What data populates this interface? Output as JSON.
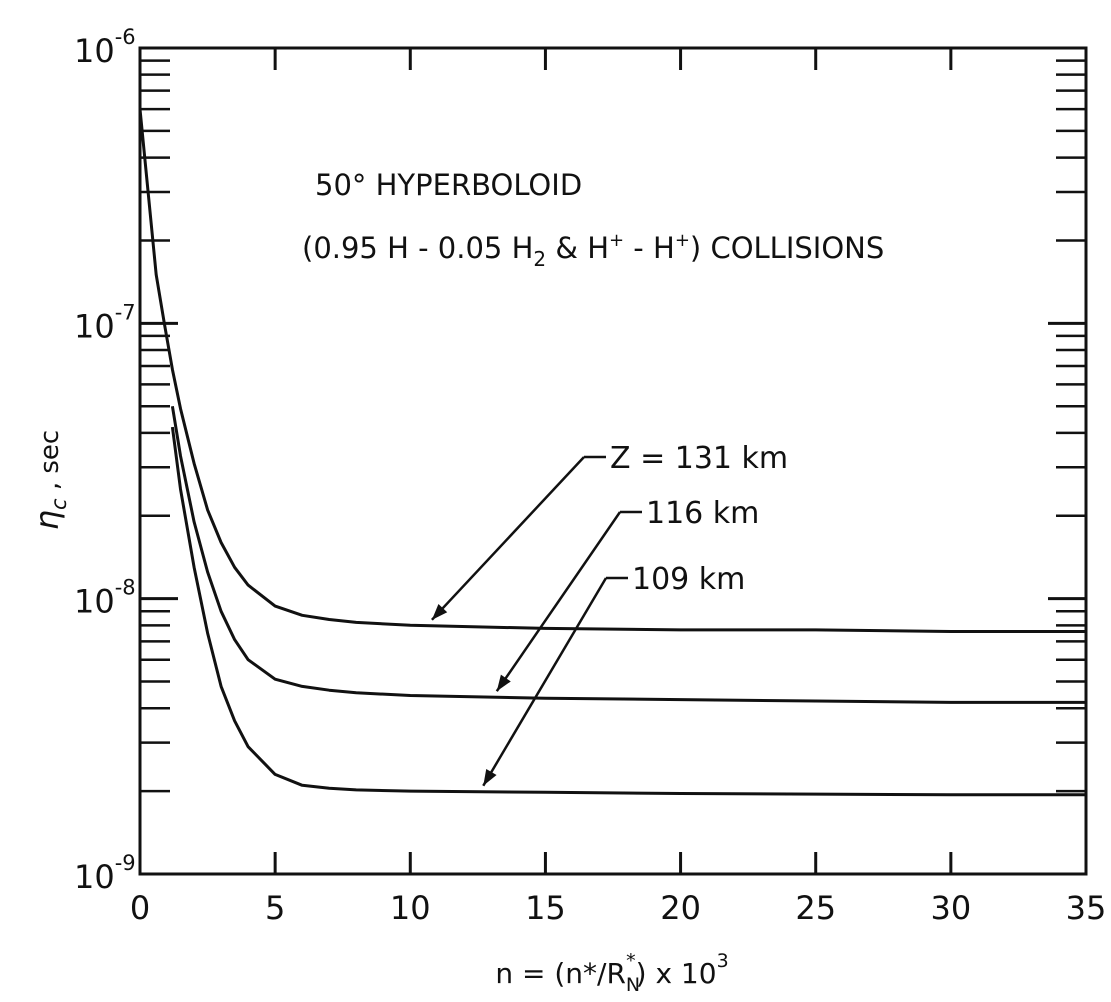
{
  "chart_data": {
    "type": "line",
    "title": "50° HYPERBOLOID",
    "subtitle": {
      "prefix": "(0.95 H - 0.05 H",
      "sub": "2",
      "mid1": " & H",
      "sup1": "+",
      "mid2": " - H",
      "sup2": "+",
      "suffix": ") COLLISIONS"
    },
    "xlabel": {
      "a": "n = (n*/R",
      "sub": "N",
      "sup": "*",
      "b": ")  x  10",
      "exp": "3"
    },
    "ylabel": {
      "eta": "η",
      "sub": "c",
      "rest": " , sec"
    },
    "x_scale": "linear",
    "y_scale": "log",
    "xlim": [
      0,
      35
    ],
    "ylim": [
      1e-09,
      1e-06
    ],
    "x_ticks": [
      "0",
      "5",
      "10",
      "15",
      "20",
      "25",
      "30",
      "35"
    ],
    "y_ticks": [
      {
        "base": "10",
        "exp": "-9"
      },
      {
        "base": "10",
        "exp": "-8"
      },
      {
        "base": "10",
        "exp": "-7"
      },
      {
        "base": "10",
        "exp": "-6"
      }
    ],
    "series": [
      {
        "name": "Z = 131 km",
        "x": [
          0.0,
          0.3,
          0.6,
          0.9,
          1.2,
          1.5,
          2.0,
          2.5,
          3.0,
          3.5,
          4.0,
          5.0,
          6.0,
          7.0,
          8.0,
          10.0,
          15.0,
          20.0,
          25.0,
          30.0,
          35.0
        ],
        "y": [
          6e-07,
          3e-07,
          1.5e-07,
          1e-07,
          6.8e-08,
          4.9e-08,
          3.1e-08,
          2.1e-08,
          1.6e-08,
          1.3e-08,
          1.12e-08,
          9.4e-09,
          8.7e-09,
          8.4e-09,
          8.2e-09,
          8e-09,
          7.8e-09,
          7.7e-09,
          7.7e-09,
          7.6e-09,
          7.6e-09
        ]
      },
      {
        "name": "116 km",
        "x": [
          1.2,
          1.5,
          2.0,
          2.5,
          3.0,
          3.5,
          4.0,
          5.0,
          6.0,
          7.0,
          8.0,
          10.0,
          15.0,
          20.0,
          25.0,
          30.0,
          35.0
        ],
        "y": [
          5e-08,
          3.3e-08,
          1.9e-08,
          1.25e-08,
          9e-09,
          7.1e-09,
          6e-09,
          5.1e-09,
          4.8e-09,
          4.65e-09,
          4.55e-09,
          4.45e-09,
          4.35e-09,
          4.3e-09,
          4.25e-09,
          4.2e-09,
          4.2e-09
        ]
      },
      {
        "name": "109 km",
        "x": [
          1.2,
          1.5,
          2.0,
          2.5,
          3.0,
          3.5,
          4.0,
          5.0,
          6.0,
          7.0,
          8.0,
          10.0,
          15.0,
          20.0,
          25.0,
          30.0,
          35.0
        ],
        "y": [
          4.2e-08,
          2.5e-08,
          1.3e-08,
          7.5e-09,
          4.8e-09,
          3.6e-09,
          2.9e-09,
          2.3e-09,
          2.1e-09,
          2.05e-09,
          2.02e-09,
          2e-09,
          1.98e-09,
          1.96e-09,
          1.95e-09,
          1.94e-09,
          1.94e-09
        ]
      }
    ],
    "annotations": [
      {
        "text": "Z = 131 km",
        "series": 0,
        "arrow_to_x": 10.8
      },
      {
        "text": "116 km",
        "series": 1,
        "arrow_to_x": 13.2
      },
      {
        "text": "109 km",
        "series": 2,
        "arrow_to_x": 12.7
      }
    ],
    "grid": false,
    "legend": "none"
  }
}
